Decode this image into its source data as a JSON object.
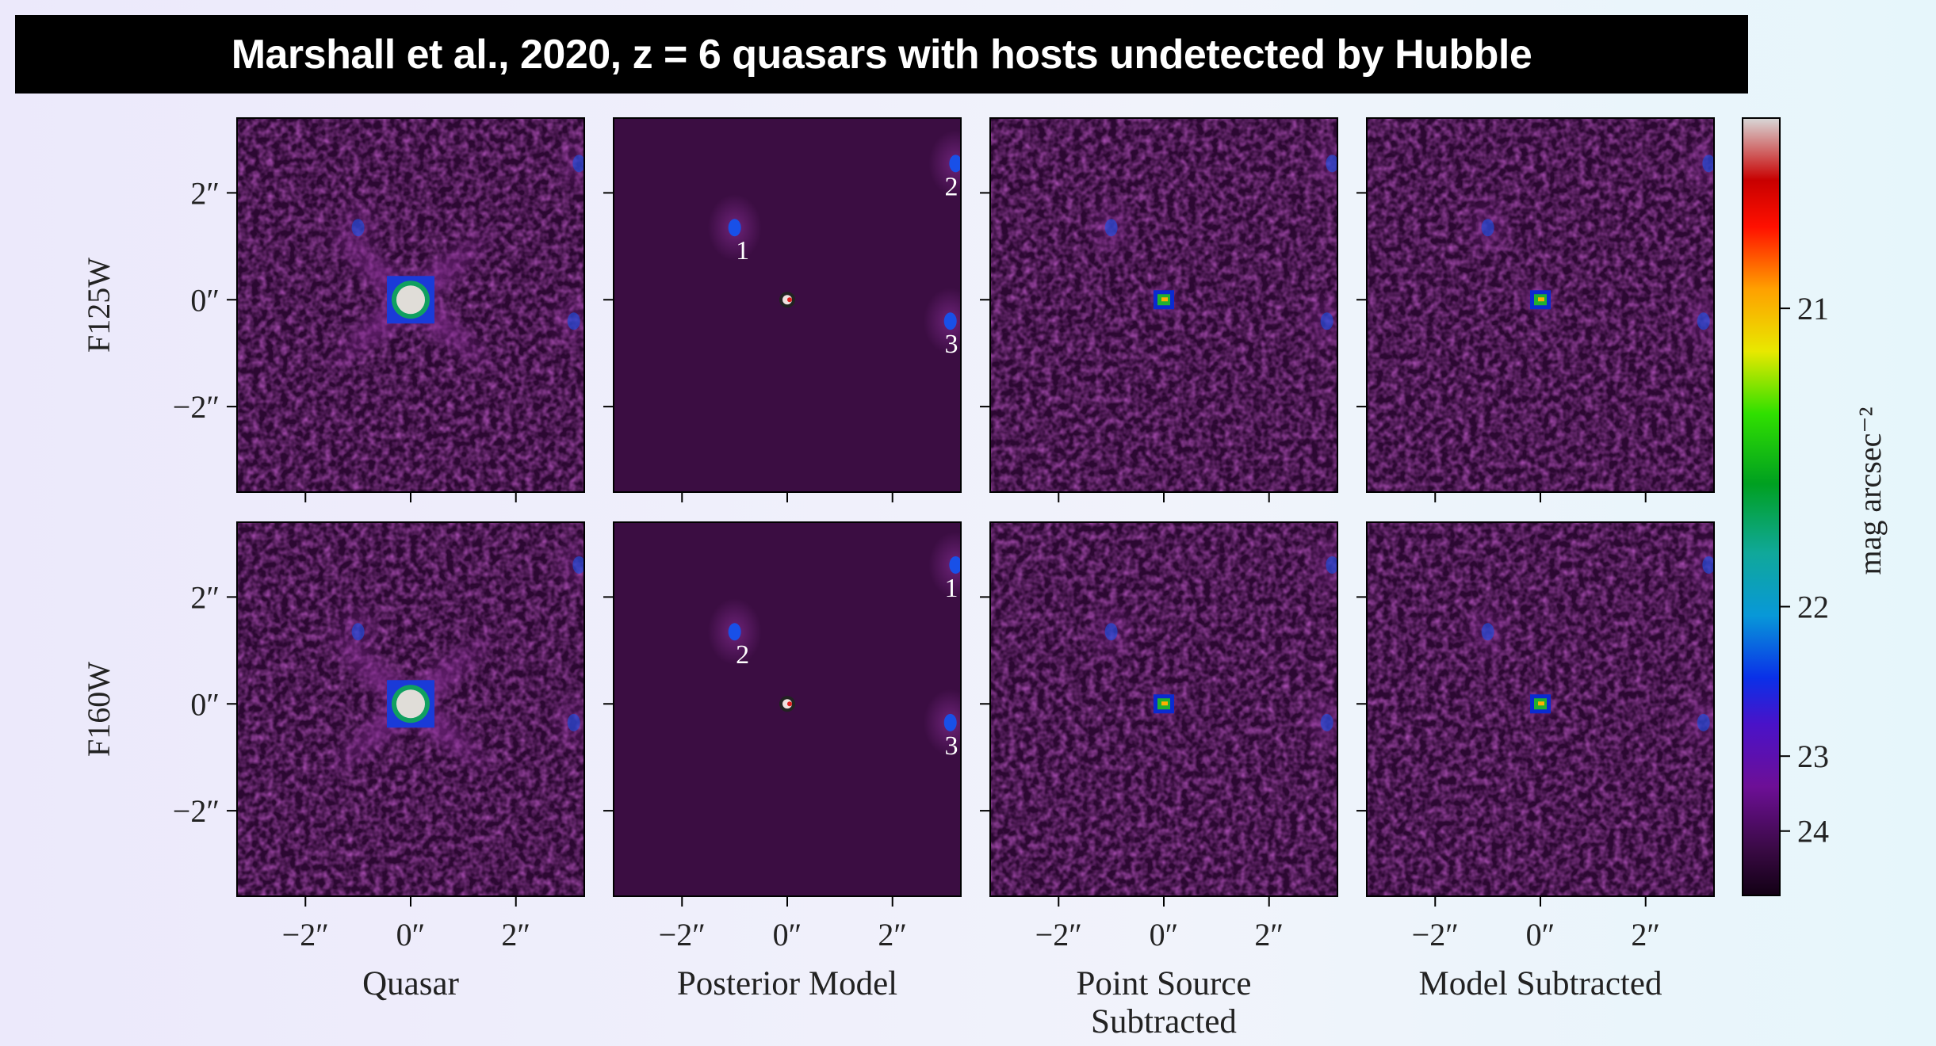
{
  "title": "Marshall et al., 2020, z = 6 quasars with hosts undetected by Hubble",
  "chart_data": {
    "type": "image-grid",
    "rows": [
      "F125W",
      "F160W"
    ],
    "columns": [
      "Quasar",
      "Posterior Model",
      "Point Source Subtracted",
      "Model Subtracted"
    ],
    "xlim": [
      -3.3,
      3.3
    ],
    "ylim": [
      -3.6,
      3.4
    ],
    "xticks": [
      {
        "value": -2,
        "label": "−2″"
      },
      {
        "value": 0,
        "label": "0″"
      },
      {
        "value": 2,
        "label": "2″"
      }
    ],
    "yticks": [
      {
        "value": -2,
        "label": "−2″"
      },
      {
        "value": 0,
        "label": "0″"
      },
      {
        "value": 2,
        "label": "2″"
      }
    ],
    "quasar": {
      "x": 0,
      "y": 0
    },
    "sources": [
      [
        {
          "label": "1",
          "x": -1.0,
          "y": 1.35
        },
        {
          "label": "2",
          "x": 3.2,
          "y": 2.55
        },
        {
          "label": "3",
          "x": 3.1,
          "y": -0.4
        }
      ],
      [
        {
          "label": "1",
          "x": 3.2,
          "y": 2.6
        },
        {
          "label": "2",
          "x": -1.0,
          "y": 1.35
        },
        {
          "label": "3",
          "x": 3.1,
          "y": -0.35
        }
      ]
    ],
    "colorbar": {
      "label": "mag arcsec⁻²",
      "lim": [
        26.8,
        20.6
      ],
      "exponent": 0.75,
      "ticks": [
        21,
        22,
        23,
        24
      ]
    }
  }
}
